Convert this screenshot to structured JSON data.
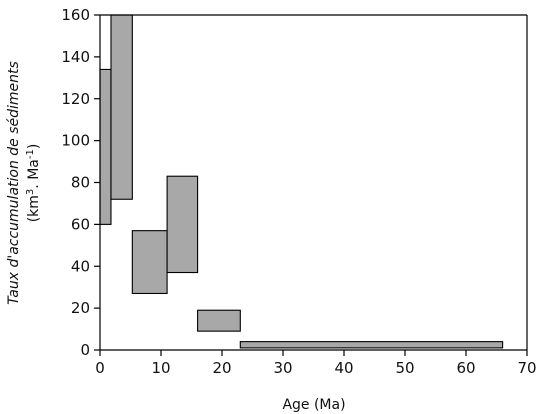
{
  "chart_data": {
    "type": "bar",
    "subtype": "range-boxes",
    "title": "",
    "xlabel": "Age (Ma)",
    "ylabel_line1": "Taux d'accumulation de sédiments",
    "ylabel_line2_prefix": "(km",
    "ylabel_line2_sup1": "3",
    "ylabel_line2_mid": ". Ma",
    "ylabel_line2_sup2": "-1",
    "ylabel_line2_suffix": ")",
    "xlim": [
      0,
      70
    ],
    "ylim": [
      0,
      160
    ],
    "xticks": [
      0,
      10,
      20,
      30,
      40,
      50,
      60,
      70
    ],
    "yticks": [
      0,
      20,
      40,
      60,
      80,
      100,
      120,
      140,
      160
    ],
    "grid": false,
    "legend": "none",
    "bar_fill": "#a8a8a8",
    "bar_stroke": "#000000",
    "boxes": [
      {
        "x0": 0,
        "x1": 1.8,
        "y0": 60,
        "y1": 134
      },
      {
        "x0": 1.8,
        "x1": 5.3,
        "y0": 72,
        "y1": 160
      },
      {
        "x0": 5.3,
        "x1": 11.0,
        "y0": 27,
        "y1": 57
      },
      {
        "x0": 11.0,
        "x1": 16.0,
        "y0": 37,
        "y1": 83
      },
      {
        "x0": 16.0,
        "x1": 23.0,
        "y0": 9,
        "y1": 19
      },
      {
        "x0": 23.0,
        "x1": 66.0,
        "y0": 1,
        "y1": 4
      }
    ]
  }
}
